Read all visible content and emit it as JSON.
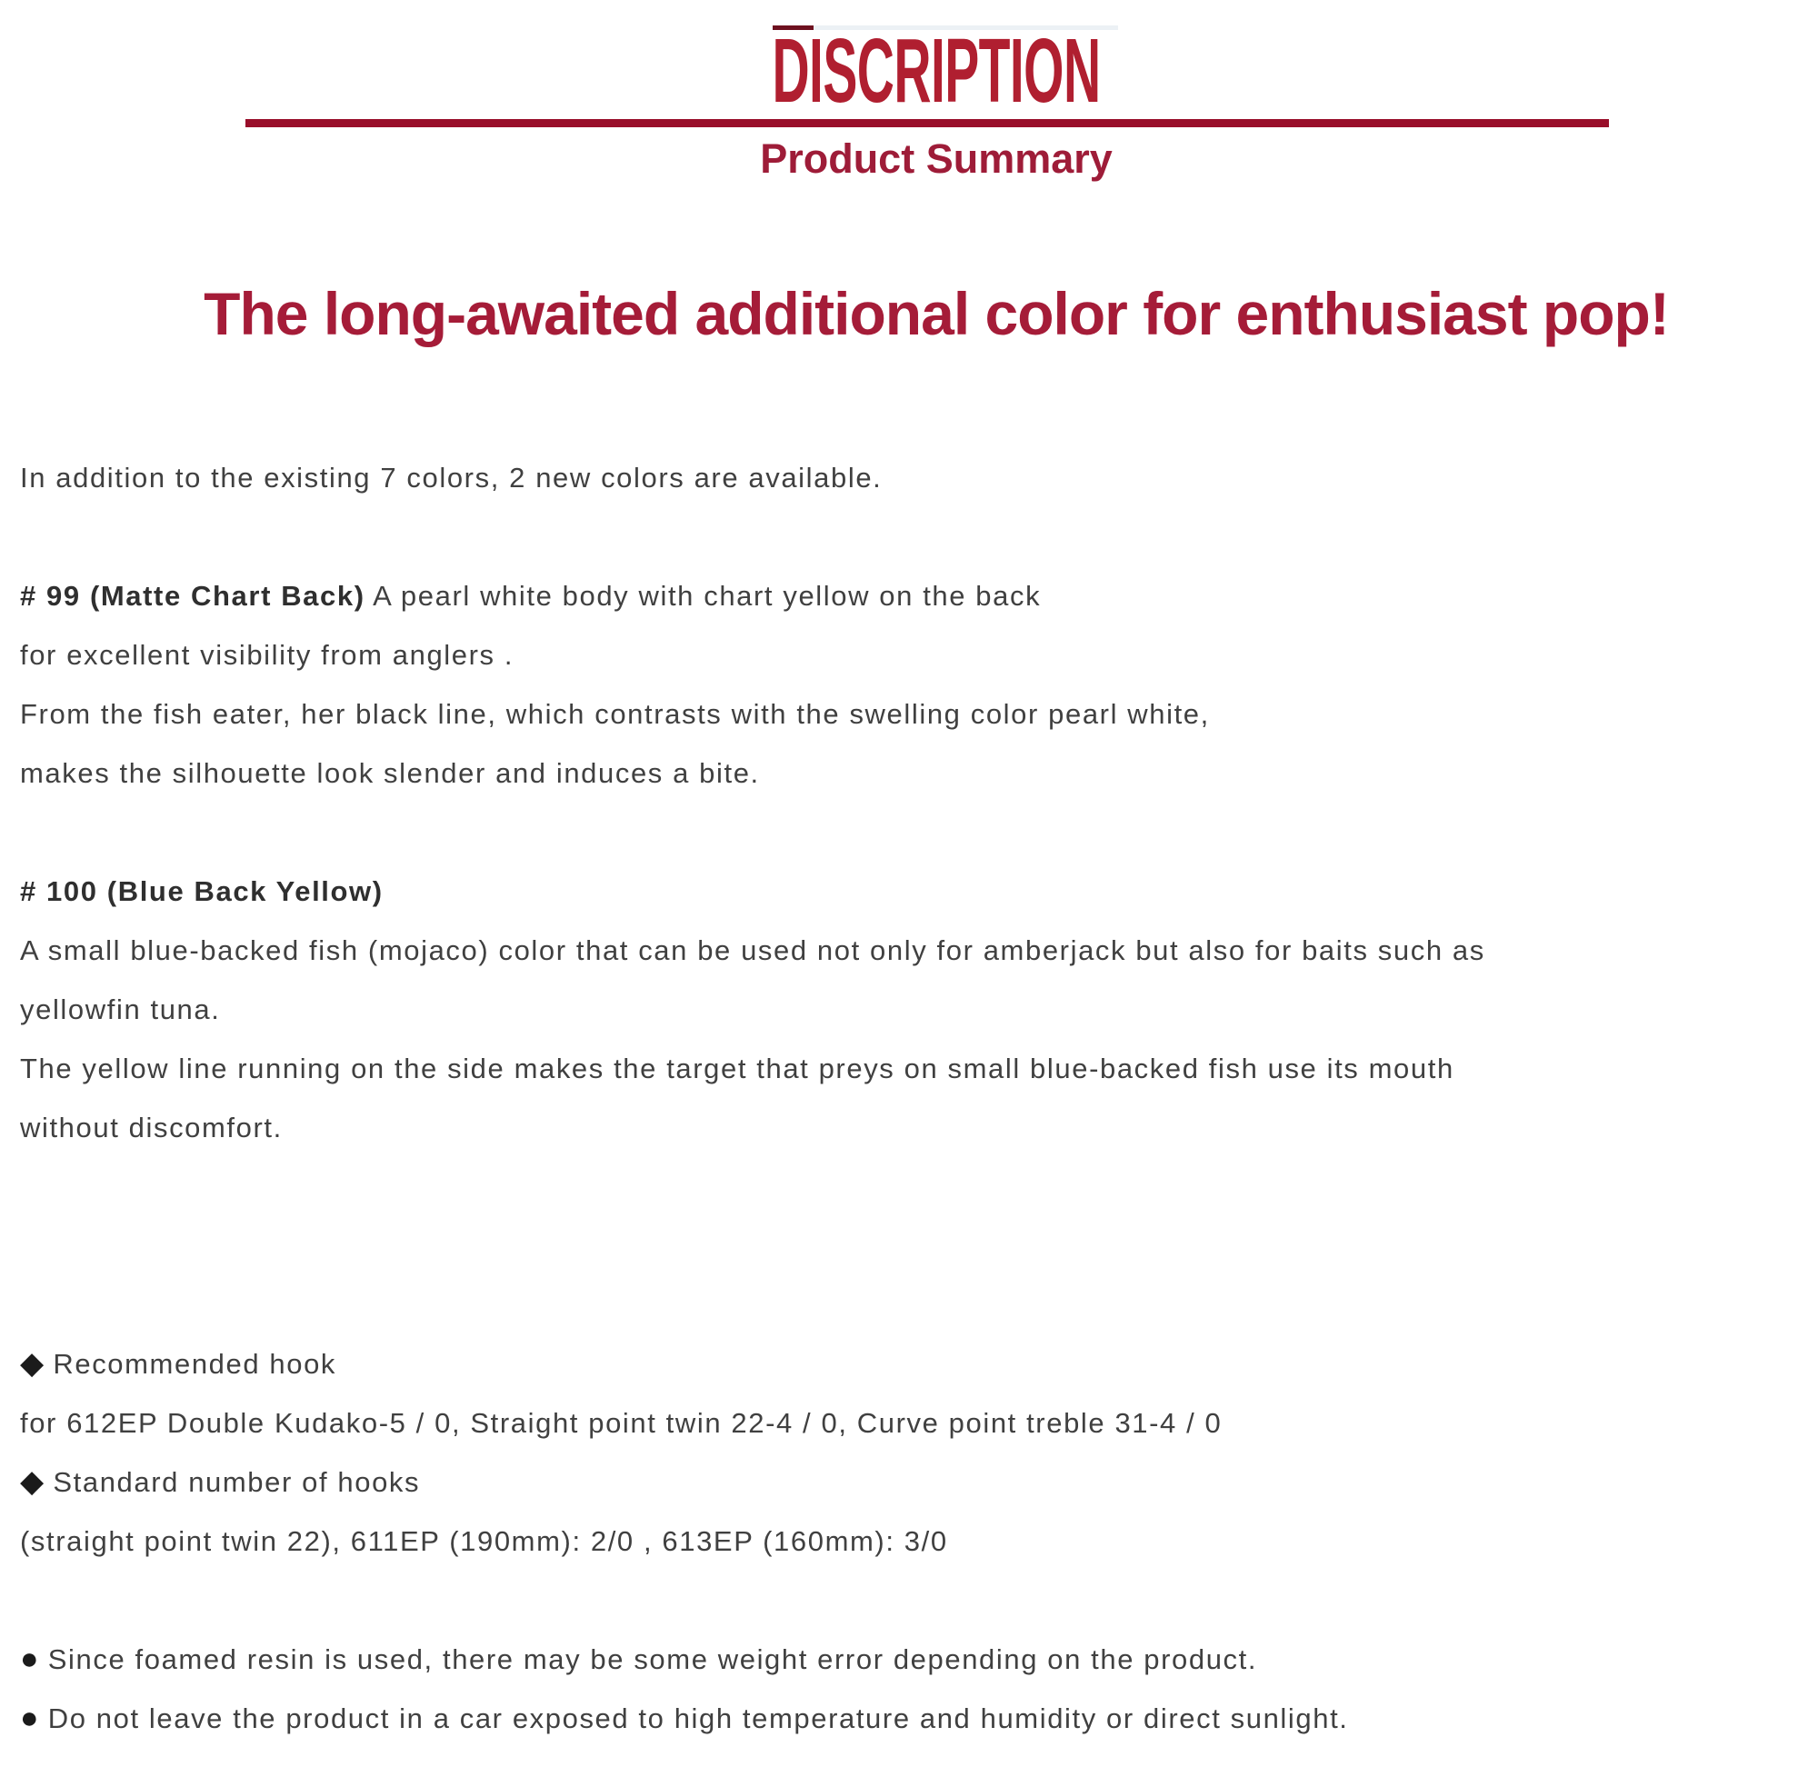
{
  "colors": {
    "background": "#ffffff",
    "title_red": "#b01f30",
    "rule_red": "#990e2a",
    "subtitle_red": "#9e1c38",
    "headline_red": "#a51c38",
    "body_text": "#404040",
    "bold_text": "#2f2f2f",
    "remnant_light": "#ecf1f5",
    "remnant_dark": "#6e1120"
  },
  "header": {
    "title": "DISCRIPTION",
    "subtitle": "Product Summary"
  },
  "headline": "The long-awaited additional color for enthusiast pop!",
  "body": {
    "lines": [
      {
        "text": "In addition to the existing 7 colors, 2 new colors are available."
      },
      {
        "blank": true
      },
      {
        "bold": "# 99 (Matte Chart Back)",
        "text": " A pearl white body with chart yellow on the back"
      },
      {
        "text": "for excellent visibility from anglers ."
      },
      {
        "text": "From the fish eater, her black line, which contrasts with the swelling color pearl white,"
      },
      {
        "text": "makes the silhouette look slender and induces a bite."
      },
      {
        "blank": true
      },
      {
        "bold": "# 100 (Blue Back Yellow)",
        "text": ""
      },
      {
        "text": "A small blue-backed fish (mojaco) color that can be used not only for amberjack but also for baits such as"
      },
      {
        "text": "yellowfin tuna."
      },
      {
        "text": "The yellow line running on the side makes the target that preys on small blue-backed fish use its mouth"
      },
      {
        "text": "without discomfort."
      },
      {
        "blank": true
      },
      {
        "blank": true
      },
      {
        "blank": true
      },
      {
        "bullet": "◆",
        "text": " Recommended hook"
      },
      {
        "text": "for 612EP Double Kudako-5 / 0, Straight point twin 22-4 / 0, Curve point treble 31-4 / 0"
      },
      {
        "bullet": "◆",
        "text": " Standard number of hooks"
      },
      {
        "text": "(straight point twin 22), 611EP (190mm): 2/0 , 613EP (160mm): 3/0"
      },
      {
        "blank": true
      },
      {
        "bullet": "●",
        "text": " Since foamed resin is used, there may be some weight error depending on the product."
      },
      {
        "bullet": "●",
        "text": " Do not leave the product in a car exposed to high temperature and humidity or direct sunlight."
      }
    ]
  }
}
